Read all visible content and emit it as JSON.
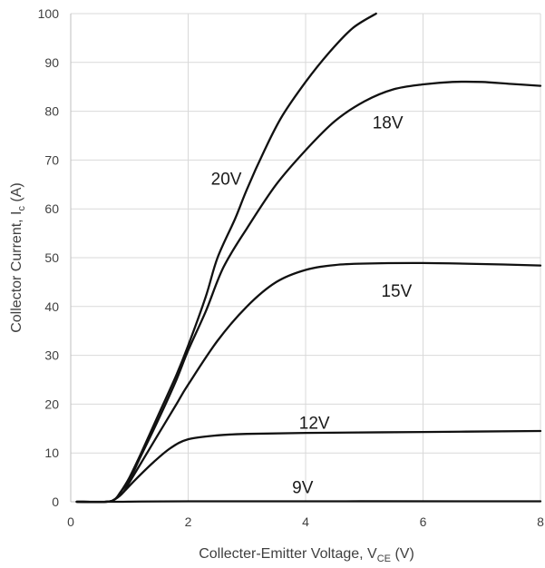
{
  "chart_data": {
    "type": "line",
    "title": "",
    "xlabel": {
      "main": "Collecter-Emitter Voltage, V",
      "sub": "CE",
      "suffix": " (V)"
    },
    "ylabel": {
      "main": "Collector Current, I",
      "sub": "c",
      "suffix": " (A)"
    },
    "xlim": [
      0,
      8
    ],
    "ylim": [
      0,
      100
    ],
    "xticks": [
      "0",
      "2",
      "4",
      "6",
      "8"
    ],
    "yticks": [
      "0",
      "10",
      "20",
      "30",
      "40",
      "50",
      "60",
      "70",
      "80",
      "90",
      "100"
    ],
    "grid": true,
    "series": [
      {
        "name": "20V",
        "label_at": [
          2.65,
          65
        ],
        "points": [
          [
            0.1,
            0
          ],
          [
            0.6,
            0
          ],
          [
            0.75,
            0.5
          ],
          [
            0.85,
            2
          ],
          [
            1.0,
            5
          ],
          [
            1.2,
            10
          ],
          [
            1.5,
            18
          ],
          [
            1.8,
            26
          ],
          [
            2.0,
            32
          ],
          [
            2.3,
            42
          ],
          [
            2.5,
            50
          ],
          [
            2.8,
            58
          ],
          [
            3.0,
            64
          ],
          [
            3.3,
            72
          ],
          [
            3.6,
            79
          ],
          [
            4.0,
            86
          ],
          [
            4.4,
            92
          ],
          [
            4.8,
            97
          ],
          [
            5.2,
            100
          ]
        ]
      },
      {
        "name": "18V",
        "label_at": [
          5.4,
          76.5
        ],
        "points": [
          [
            0.1,
            0
          ],
          [
            0.6,
            0
          ],
          [
            0.75,
            0.5
          ],
          [
            0.85,
            2
          ],
          [
            1.0,
            4.5
          ],
          [
            1.2,
            9.5
          ],
          [
            1.5,
            17
          ],
          [
            1.8,
            25
          ],
          [
            2.0,
            31
          ],
          [
            2.3,
            39
          ],
          [
            2.6,
            48
          ],
          [
            3.0,
            56
          ],
          [
            3.5,
            65
          ],
          [
            4.0,
            72
          ],
          [
            4.5,
            78
          ],
          [
            5.0,
            82
          ],
          [
            5.5,
            84.5
          ],
          [
            6.0,
            85.5
          ],
          [
            6.5,
            86
          ],
          [
            7.0,
            86
          ],
          [
            7.5,
            85.6
          ],
          [
            8.0,
            85.2
          ]
        ]
      },
      {
        "name": "15V",
        "label_at": [
          5.55,
          42
        ],
        "points": [
          [
            0.1,
            0
          ],
          [
            0.6,
            0
          ],
          [
            0.75,
            0.5
          ],
          [
            0.9,
            2
          ],
          [
            1.0,
            4
          ],
          [
            1.2,
            8
          ],
          [
            1.5,
            14
          ],
          [
            1.8,
            20
          ],
          [
            2.0,
            24
          ],
          [
            2.5,
            33
          ],
          [
            3.0,
            40
          ],
          [
            3.5,
            45
          ],
          [
            4.0,
            47.5
          ],
          [
            4.5,
            48.5
          ],
          [
            5.0,
            48.8
          ],
          [
            6.0,
            48.9
          ],
          [
            7.0,
            48.7
          ],
          [
            8.0,
            48.4
          ]
        ]
      },
      {
        "name": "12V",
        "label_at": [
          4.15,
          15
        ],
        "points": [
          [
            0.1,
            0
          ],
          [
            0.6,
            0
          ],
          [
            0.75,
            0.5
          ],
          [
            0.9,
            2
          ],
          [
            1.1,
            4.5
          ],
          [
            1.4,
            8
          ],
          [
            1.7,
            11
          ],
          [
            2.0,
            12.8
          ],
          [
            2.5,
            13.6
          ],
          [
            3.0,
            13.9
          ],
          [
            4.0,
            14.1
          ],
          [
            6.0,
            14.3
          ],
          [
            8.0,
            14.5
          ]
        ]
      },
      {
        "name": "9V",
        "label_at": [
          3.95,
          1.8
        ],
        "points": [
          [
            0.1,
            0
          ],
          [
            0.8,
            0
          ],
          [
            2.0,
            0.1
          ],
          [
            8.0,
            0.1
          ]
        ]
      }
    ]
  }
}
